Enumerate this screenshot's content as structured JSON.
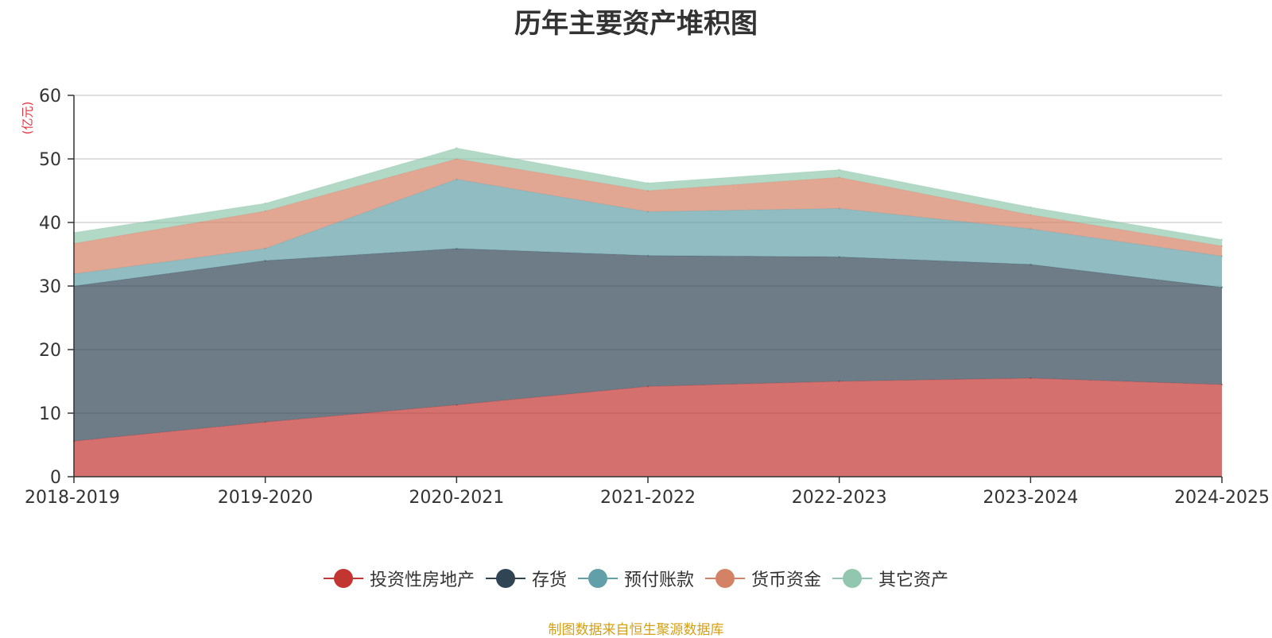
{
  "chart_data": {
    "type": "area",
    "stacked": true,
    "title": "历年主要资产堆积图",
    "ylabel": "(亿元)",
    "categories": [
      "2018-2019",
      "2019-2020",
      "2020-2021",
      "2021-2022",
      "2022-2023",
      "2023-2024",
      "2024-2025"
    ],
    "ylim": [
      0,
      60
    ],
    "yticks": [
      0,
      10,
      20,
      30,
      40,
      50,
      60
    ],
    "grid": true,
    "legend_position": "bottom",
    "series": [
      {
        "name": "投资性房地产",
        "color": "#c23531",
        "values": [
          5.6,
          8.6,
          11.3,
          14.2,
          15.0,
          15.5,
          14.5
        ]
      },
      {
        "name": "存货",
        "color": "#2f4554",
        "values": [
          24.4,
          25.4,
          24.6,
          20.6,
          19.6,
          17.9,
          15.3
        ]
      },
      {
        "name": "预付账款",
        "color": "#61a0a8",
        "values": [
          1.9,
          1.9,
          10.9,
          6.9,
          7.6,
          5.6,
          4.9
        ]
      },
      {
        "name": "货币资金",
        "color": "#d48265",
        "values": [
          4.8,
          5.9,
          3.2,
          3.3,
          4.9,
          2.2,
          1.6
        ]
      },
      {
        "name": "其它资产",
        "color": "#91c7ae",
        "values": [
          1.7,
          1.2,
          1.7,
          1.2,
          1.2,
          1.2,
          1.0
        ]
      }
    ]
  },
  "source_note": "制图数据来自恒生聚源数据库"
}
